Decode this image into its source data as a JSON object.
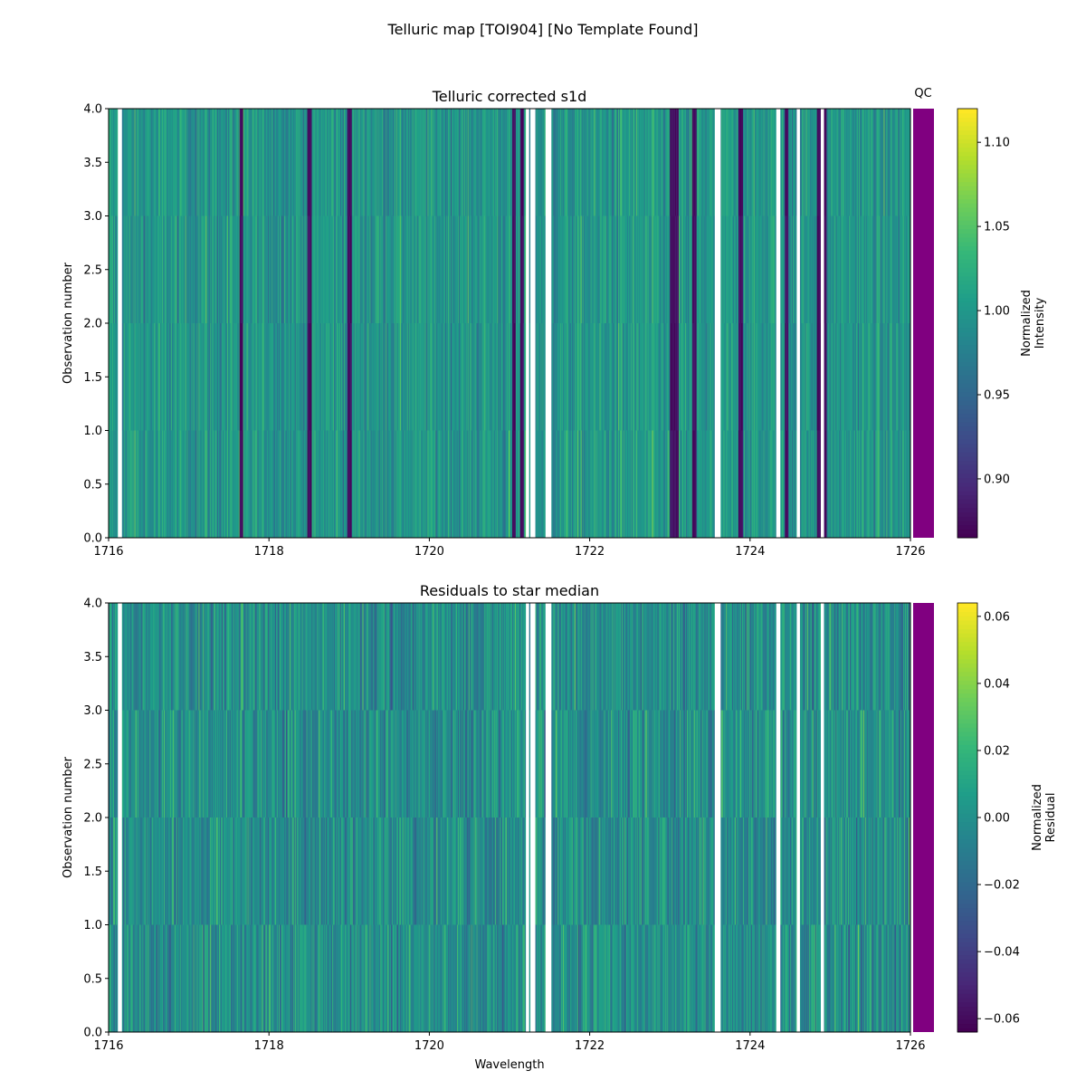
{
  "figure_title": "Telluric map [TOI904] [No Template Found]",
  "qc_label": "QC",
  "qc_color": "#800080",
  "chart_data": [
    {
      "type": "heatmap",
      "title": "Telluric corrected s1d",
      "xlabel": "",
      "ylabel": "Observation number",
      "xlim": [
        1716,
        1726
      ],
      "ylim": [
        0,
        4
      ],
      "xticks": [
        "1716",
        "1718",
        "1720",
        "1722",
        "1724",
        "1726"
      ],
      "yticks": [
        "0.0",
        "0.5",
        "1.0",
        "1.5",
        "2.0",
        "2.5",
        "3.0",
        "3.5",
        "4.0"
      ],
      "rows": 4,
      "colormap": "viridis",
      "colorbar": {
        "label": [
          "Normalized",
          "Intensity"
        ],
        "range": [
          0.865,
          1.12
        ],
        "ticks": [
          "0.90",
          "0.95",
          "1.00",
          "1.05",
          "1.10"
        ]
      },
      "value_center": 1.0,
      "value_spread": 0.03,
      "dark_lines": [
        1717.65,
        1718.5,
        1719.0,
        1721.05,
        1721.15,
        1723.02,
        1723.08,
        1723.3,
        1723.88,
        1724.45,
        1724.85,
        1724.92
      ],
      "gaps": [
        [
          1716.12,
          1716.16
        ],
        [
          1721.21,
          1721.24
        ],
        [
          1721.26,
          1721.32
        ],
        [
          1721.45,
          1721.52
        ],
        [
          1723.56,
          1723.63
        ],
        [
          1724.33,
          1724.37
        ],
        [
          1724.58,
          1724.62
        ],
        [
          1724.88,
          1724.92
        ]
      ]
    },
    {
      "type": "heatmap",
      "title": "Residuals to star median",
      "xlabel": "Wavelength",
      "ylabel": "Observation number",
      "xlim": [
        1716,
        1726
      ],
      "ylim": [
        0,
        4
      ],
      "xticks": [
        "1716",
        "1718",
        "1720",
        "1722",
        "1724",
        "1726"
      ],
      "yticks": [
        "0.0",
        "0.5",
        "1.0",
        "1.5",
        "2.0",
        "2.5",
        "3.0",
        "3.5",
        "4.0"
      ],
      "rows": 4,
      "colormap": "viridis",
      "colorbar": {
        "label": [
          "Normalized",
          "Residual"
        ],
        "range": [
          -0.064,
          0.064
        ],
        "ticks": [
          "−0.06",
          "−0.04",
          "−0.02",
          "0.00",
          "0.02",
          "0.04",
          "0.06"
        ]
      },
      "value_center": 0.0,
      "value_spread": 0.018,
      "dark_lines": [],
      "gaps": [
        [
          1716.12,
          1716.16
        ],
        [
          1721.21,
          1721.24
        ],
        [
          1721.26,
          1721.32
        ],
        [
          1721.45,
          1721.52
        ],
        [
          1723.56,
          1723.63
        ],
        [
          1724.33,
          1724.37
        ],
        [
          1724.58,
          1724.62
        ],
        [
          1724.88,
          1724.92
        ]
      ]
    }
  ]
}
